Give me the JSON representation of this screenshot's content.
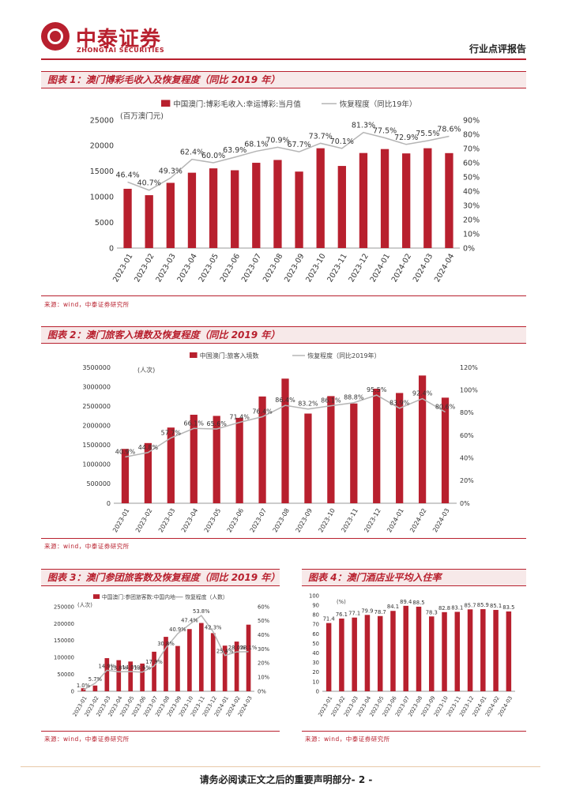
{
  "header": {
    "logo_cn": "中泰证券",
    "logo_en": "ZHONGTAI SECURITIES",
    "report_type": "行业点评报告"
  },
  "footer": {
    "text": "请务必阅读正文之后的重要声明部分- 2 -"
  },
  "colors": {
    "bar": "#b8202e",
    "line": "#b5b5b5",
    "accent": "#b8202e"
  },
  "chart_data": [
    {
      "id": "chart1",
      "type": "bar",
      "title": "图表 1：澳门博彩毛收入及恢复程度（同比 2019 年）",
      "source": "来源：wind，中泰证券研究所",
      "unit_label": "(百万澳门元)",
      "legend": [
        "中国澳门:博彩毛收入:幸运博彩:当月值",
        "恢复程度（同比19年）"
      ],
      "categories": [
        "2023-01",
        "2023-02",
        "2023-03",
        "2023-04",
        "2023-05",
        "2023-06",
        "2023-07",
        "2023-08",
        "2023-09",
        "2023-10",
        "2023-11",
        "2023-12",
        "2024-01",
        "2024-02",
        "2024-03",
        "2024-04"
      ],
      "yticks_left": [
        "0",
        "5000",
        "10000",
        "15000",
        "20000",
        "25000"
      ],
      "yticks_right": [
        "0%",
        "10%",
        "20%",
        "30%",
        "40%",
        "50%",
        "60%",
        "70%",
        "80%",
        "90%"
      ],
      "ylim": [
        0,
        25000
      ],
      "y2lim": [
        0,
        90
      ],
      "series": [
        {
          "name": "中国澳门:博彩毛收入:幸运博彩:当月值",
          "type": "bar",
          "values": [
            11580,
            10330,
            12740,
            14720,
            15570,
            15200,
            16660,
            17210,
            14940,
            19500,
            16040,
            18570,
            19340,
            18490,
            19500,
            18550
          ]
        },
        {
          "name": "恢复程度（同比19年）",
          "type": "line",
          "values": [
            46.4,
            40.7,
            49.3,
            62.4,
            60.0,
            63.9,
            68.1,
            70.9,
            67.7,
            73.7,
            70.1,
            81.3,
            77.5,
            72.9,
            75.5,
            78.6
          ]
        }
      ],
      "data_labels": [
        "46.4%",
        "40.7%",
        "49.3%",
        "62.4%",
        "60.0%",
        "63.9%",
        "68.1%",
        "70.9%",
        "67.7%",
        "73.7%",
        "70.1%",
        "81.3%",
        "77.5%",
        "72.9%",
        "75.5%",
        "78.6%"
      ]
    },
    {
      "id": "chart2",
      "type": "bar",
      "title": "图表 2：澳门旅客入境数及恢复程度（同比 2019 年）",
      "source": "来源：wind，中泰证券研究所",
      "unit_label": "(人次)",
      "legend": [
        "中国澳门:旅客入境数",
        "恢复程度（同比2019年）"
      ],
      "categories": [
        "2023-01",
        "2023-02",
        "2023-03",
        "2023-04",
        "2023-05",
        "2023-06",
        "2023-07",
        "2023-08",
        "2023-09",
        "2023-10",
        "2023-11",
        "2023-12",
        "2024-01",
        "2024-02",
        "2024-03"
      ],
      "yticks_left": [
        "0",
        "500000",
        "1000000",
        "1500000",
        "2000000",
        "2500000",
        "3000000",
        "3500000"
      ],
      "yticks_right": [
        "0%",
        "20%",
        "40%",
        "60%",
        "80%",
        "100%",
        "120%"
      ],
      "ylim": [
        0,
        3500000
      ],
      "y2lim": [
        0,
        120
      ],
      "series": [
        {
          "name": "中国澳门:旅客入境数",
          "type": "bar",
          "values": [
            1400000,
            1550000,
            1950000,
            2280000,
            2250000,
            2200000,
            2750000,
            3210000,
            2310000,
            2760000,
            2570000,
            2950000,
            2840000,
            3290000,
            2720000
          ]
        },
        {
          "name": "恢复程度（同比2019年）",
          "type": "line",
          "values": [
            40.9,
            44.8,
            57.7,
            66.1,
            65.6,
            71.4,
            76.4,
            86.4,
            83.2,
            86.1,
            88.8,
            95.5,
            83.9,
            92.4,
            80.6
          ]
        }
      ],
      "data_labels": [
        "40.9%",
        "44.8%",
        "57.7%",
        "66.1%",
        "65.6%",
        "71.4%",
        "76.4%",
        "86.4%",
        "83.2%",
        "86.1%",
        "88.8%",
        "95.5%",
        "83.9%",
        "92.4%",
        "80.6%"
      ]
    },
    {
      "id": "chart3",
      "type": "bar",
      "title": "图表 3：澳门参团旅客数及恢复程度（同比 2019 年）",
      "source": "来源：wind，中泰证券研究所",
      "unit_label": "(人次)",
      "legend": [
        "中国澳门:参团旅客数:中国内地",
        "恢复程度（人数）"
      ],
      "categories": [
        "2023-01",
        "2023-02",
        "2023-03",
        "2023-04",
        "2023-05",
        "2023-06",
        "2023-07",
        "2023-08",
        "2023-09",
        "2023-10",
        "2023-11",
        "2023-12",
        "2024-01",
        "2024-02",
        "2024-03"
      ],
      "yticks_left": [
        "0",
        "50000",
        "100000",
        "150000",
        "200000",
        "250000"
      ],
      "yticks_right": [
        "0%",
        "10%",
        "20%",
        "30%",
        "40%",
        "50%",
        "60%"
      ],
      "ylim": [
        0,
        250000
      ],
      "y2lim": [
        0,
        60
      ],
      "series": [
        {
          "name": "中国澳门:参团旅客数:中国内地",
          "type": "bar",
          "values": [
            9000,
            17000,
            98000,
            92000,
            88000,
            82000,
            117000,
            161000,
            134000,
            184000,
            202000,
            172000,
            135000,
            147000,
            197000
          ]
        },
        {
          "name": "恢复程度（人数）",
          "type": "line",
          "values": [
            1.0,
            5.7,
            14.9,
            13.8,
            14.0,
            13.6,
            17.9,
            30.8,
            40.9,
            47.4,
            53.8,
            42.3,
            25.4,
            28.0,
            28.1
          ]
        }
      ],
      "data_labels": [
        "1.0%",
        "5.7%",
        "14.9%",
        "13.8%",
        "14.0%",
        "13.6%",
        "17.9%",
        "30.8%",
        "40.9%",
        "47.4%",
        "53.8%",
        "42.3%",
        "25.4%",
        "28.0%",
        "28.1%"
      ]
    },
    {
      "id": "chart4",
      "type": "bar",
      "title": "图表 4：澳门酒店业平均入住率",
      "source": "来源：wind，中泰证券研究所",
      "unit_label": "(%)",
      "categories": [
        "2023-01",
        "2023-02",
        "2023-03",
        "2023-04",
        "2023-05",
        "2023-06",
        "2023-07",
        "2023-08",
        "2023-09",
        "2023-10",
        "2023-11",
        "2023-12",
        "2024-01",
        "2024-02",
        "2024-03"
      ],
      "yticks_left": [
        "0",
        "10",
        "20",
        "30",
        "40",
        "50",
        "60",
        "70",
        "80",
        "90",
        "100"
      ],
      "ylim": [
        0,
        100
      ],
      "series": [
        {
          "name": "澳门酒店业平均入住率",
          "type": "bar",
          "values": [
            71.4,
            76.1,
            77.1,
            79.9,
            78.7,
            84.1,
            89.4,
            88.5,
            78.3,
            82.8,
            83.1,
            85.7,
            85.9,
            85.1,
            83.5
          ]
        }
      ],
      "data_labels": [
        "71.4",
        "76.1",
        "77.1",
        "79.9",
        "78.7",
        "84.1",
        "89.4",
        "88.5",
        "78.3",
        "82.8",
        "83.1",
        "85.7",
        "85.9",
        "85.1",
        "83.5"
      ]
    }
  ]
}
